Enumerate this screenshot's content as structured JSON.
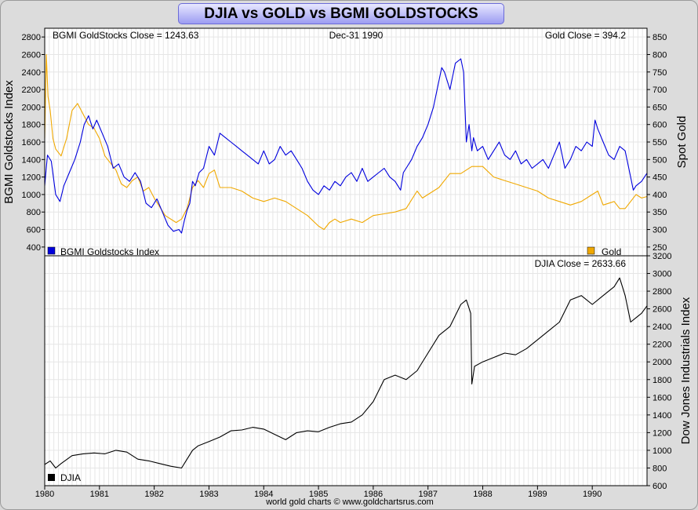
{
  "title": "DJIA vs GOLD vs BGMI GOLDSTOCKS",
  "credit": "world gold charts © www.goldchartsrus.com",
  "chart_data": [
    {
      "type": "line",
      "panel": "top",
      "date_label": "Dec-31  1990",
      "left_readout": "BGMI GoldStocks Close = 1243.63",
      "right_readout": "Gold Close = 394.2",
      "ylabel_left": "BGMI Goldstocks Index",
      "ylabel_right": "Spot Gold",
      "x_ticks": [
        "1980",
        "1981",
        "1982",
        "1983",
        "1984",
        "1985",
        "1986",
        "1987",
        "1988",
        "1989",
        "1990"
      ],
      "xlim": [
        1980.0,
        1991.0
      ],
      "ylim_left": [
        300,
        2900
      ],
      "ylim_right": [
        225,
        875
      ],
      "yticks_left": [
        400,
        600,
        800,
        1000,
        1200,
        1400,
        1600,
        1800,
        2000,
        2200,
        2400,
        2600,
        2800
      ],
      "yticks_right": [
        250,
        300,
        350,
        400,
        450,
        500,
        550,
        600,
        650,
        700,
        750,
        800,
        850
      ],
      "grid": true,
      "series": [
        {
          "name": "BGMI Goldstocks Index",
          "axis": "left",
          "color": "#0000dd",
          "x": [
            1980.0,
            1980.05,
            1980.12,
            1980.2,
            1980.28,
            1980.35,
            1980.45,
            1980.55,
            1980.65,
            1980.72,
            1980.8,
            1980.88,
            1980.95,
            1981.05,
            1981.15,
            1981.25,
            1981.35,
            1981.45,
            1981.55,
            1981.65,
            1981.75,
            1981.85,
            1981.95,
            1982.05,
            1982.15,
            1982.25,
            1982.35,
            1982.45,
            1982.5,
            1982.55,
            1982.6,
            1982.65,
            1982.7,
            1982.75,
            1982.82,
            1982.9,
            1983.0,
            1983.1,
            1983.2,
            1983.3,
            1983.4,
            1983.5,
            1983.6,
            1983.7,
            1983.8,
            1983.9,
            1984.0,
            1984.1,
            1984.2,
            1984.3,
            1984.4,
            1984.5,
            1984.6,
            1984.7,
            1984.8,
            1984.9,
            1985.0,
            1985.1,
            1985.2,
            1985.3,
            1985.4,
            1985.5,
            1985.6,
            1985.7,
            1985.8,
            1985.9,
            1986.0,
            1986.1,
            1986.2,
            1986.3,
            1986.4,
            1986.5,
            1986.55,
            1986.6,
            1986.7,
            1986.8,
            1986.9,
            1987.0,
            1987.1,
            1987.2,
            1987.25,
            1987.3,
            1987.4,
            1987.5,
            1987.6,
            1987.65,
            1987.7,
            1987.75,
            1987.8,
            1987.83,
            1987.9,
            1988.0,
            1988.1,
            1988.2,
            1988.3,
            1988.4,
            1988.5,
            1988.6,
            1988.7,
            1988.8,
            1988.9,
            1989.0,
            1989.1,
            1989.2,
            1989.3,
            1989.4,
            1989.5,
            1989.6,
            1989.7,
            1989.8,
            1989.9,
            1990.0,
            1990.05,
            1990.1,
            1990.2,
            1990.3,
            1990.4,
            1990.5,
            1990.6,
            1990.7,
            1990.75,
            1990.8,
            1990.9,
            1991.0
          ],
          "values": [
            1100,
            1450,
            1380,
            1000,
            920,
            1100,
            1250,
            1400,
            1600,
            1800,
            1900,
            1750,
            1850,
            1700,
            1550,
            1300,
            1350,
            1200,
            1150,
            1250,
            1150,
            900,
            850,
            950,
            800,
            650,
            580,
            600,
            560,
            700,
            820,
            900,
            1150,
            1100,
            1250,
            1300,
            1550,
            1450,
            1700,
            1650,
            1600,
            1550,
            1500,
            1450,
            1400,
            1350,
            1500,
            1350,
            1400,
            1550,
            1450,
            1500,
            1400,
            1300,
            1150,
            1050,
            1000,
            1100,
            1050,
            1150,
            1100,
            1200,
            1250,
            1150,
            1300,
            1150,
            1200,
            1250,
            1300,
            1200,
            1150,
            1050,
            1250,
            1300,
            1400,
            1550,
            1650,
            1800,
            2000,
            2300,
            2450,
            2400,
            2200,
            2500,
            2550,
            2400,
            1600,
            1800,
            1500,
            1650,
            1500,
            1550,
            1400,
            1500,
            1600,
            1450,
            1400,
            1500,
            1350,
            1400,
            1300,
            1350,
            1400,
            1300,
            1450,
            1600,
            1300,
            1400,
            1550,
            1500,
            1600,
            1550,
            1850,
            1750,
            1600,
            1450,
            1400,
            1550,
            1500,
            1200,
            1050,
            1100,
            1150,
            1243.63
          ]
        },
        {
          "name": "Gold",
          "axis": "right",
          "color": "#f0a800",
          "x": [
            1980.0,
            1980.03,
            1980.06,
            1980.1,
            1980.15,
            1980.2,
            1980.3,
            1980.4,
            1980.5,
            1980.6,
            1980.7,
            1980.8,
            1980.9,
            1981.0,
            1981.1,
            1981.2,
            1981.3,
            1981.4,
            1981.5,
            1981.6,
            1981.7,
            1981.8,
            1981.9,
            1982.0,
            1982.2,
            1982.4,
            1982.5,
            1982.6,
            1982.7,
            1982.8,
            1982.9,
            1983.0,
            1983.1,
            1983.2,
            1983.4,
            1983.6,
            1983.8,
            1984.0,
            1984.2,
            1984.4,
            1984.6,
            1984.8,
            1985.0,
            1985.1,
            1985.2,
            1985.3,
            1985.4,
            1985.6,
            1985.8,
            1986.0,
            1986.2,
            1986.4,
            1986.6,
            1986.8,
            1986.9,
            1987.0,
            1987.2,
            1987.4,
            1987.6,
            1987.8,
            1988.0,
            1988.2,
            1988.4,
            1988.6,
            1988.8,
            1989.0,
            1989.2,
            1989.4,
            1989.6,
            1989.8,
            1990.0,
            1990.1,
            1990.2,
            1990.4,
            1990.5,
            1990.6,
            1990.7,
            1990.8,
            1990.9,
            1991.0
          ],
          "values": [
            560,
            800,
            680,
            640,
            560,
            530,
            510,
            560,
            640,
            660,
            630,
            600,
            590,
            560,
            510,
            490,
            470,
            430,
            420,
            440,
            450,
            410,
            420,
            390,
            340,
            320,
            330,
            360,
            420,
            440,
            420,
            460,
            470,
            420,
            420,
            410,
            390,
            380,
            390,
            380,
            360,
            340,
            310,
            300,
            320,
            330,
            320,
            330,
            320,
            340,
            345,
            350,
            360,
            410,
            390,
            400,
            420,
            460,
            460,
            480,
            480,
            450,
            440,
            430,
            420,
            410,
            390,
            380,
            370,
            380,
            400,
            410,
            370,
            380,
            360,
            360,
            380,
            400,
            390,
            394.2
          ]
        }
      ]
    },
    {
      "type": "line",
      "panel": "bottom",
      "right_readout": "DJIA Close = 2633.66",
      "ylabel_right": "Dow Jones Industrials Index",
      "xlim": [
        1980.0,
        1991.0
      ],
      "ylim": [
        600,
        3200
      ],
      "yticks": [
        600,
        800,
        1000,
        1200,
        1400,
        1600,
        1800,
        2000,
        2200,
        2400,
        2600,
        2800,
        3000,
        3200
      ],
      "grid": true,
      "series": [
        {
          "name": "DJIA",
          "color": "#000000",
          "x": [
            1980.0,
            1980.1,
            1980.2,
            1980.3,
            1980.5,
            1980.7,
            1980.9,
            1981.1,
            1981.3,
            1981.5,
            1981.7,
            1981.9,
            1982.1,
            1982.3,
            1982.5,
            1982.6,
            1982.7,
            1982.8,
            1983.0,
            1983.2,
            1983.4,
            1983.6,
            1983.8,
            1984.0,
            1984.2,
            1984.4,
            1984.6,
            1984.8,
            1985.0,
            1985.2,
            1985.4,
            1985.6,
            1985.8,
            1986.0,
            1986.2,
            1986.4,
            1986.6,
            1986.8,
            1987.0,
            1987.2,
            1987.4,
            1987.6,
            1987.7,
            1987.78,
            1987.8,
            1987.85,
            1988.0,
            1988.2,
            1988.4,
            1988.6,
            1988.8,
            1989.0,
            1989.2,
            1989.4,
            1989.6,
            1989.8,
            1990.0,
            1990.2,
            1990.4,
            1990.5,
            1990.6,
            1990.7,
            1990.8,
            1990.9,
            1991.0
          ],
          "values": [
            840,
            880,
            800,
            850,
            940,
            960,
            970,
            960,
            1000,
            980,
            900,
            880,
            850,
            820,
            800,
            900,
            1000,
            1050,
            1100,
            1150,
            1220,
            1230,
            1260,
            1240,
            1180,
            1120,
            1200,
            1220,
            1210,
            1260,
            1300,
            1320,
            1400,
            1550,
            1800,
            1850,
            1800,
            1900,
            2100,
            2300,
            2400,
            2650,
            2700,
            2550,
            1750,
            1950,
            2000,
            2050,
            2100,
            2080,
            2150,
            2250,
            2350,
            2450,
            2700,
            2750,
            2650,
            2750,
            2850,
            2950,
            2750,
            2450,
            2500,
            2550,
            2633.66
          ]
        }
      ]
    }
  ]
}
